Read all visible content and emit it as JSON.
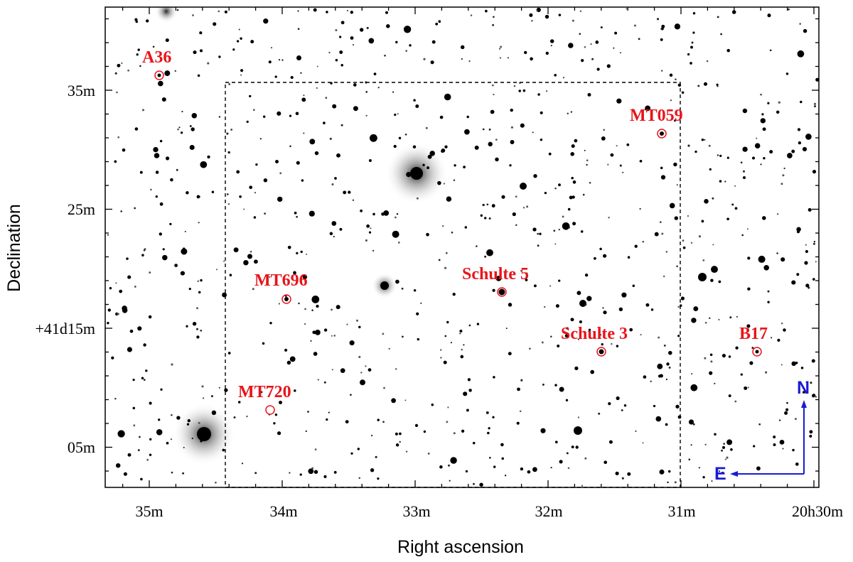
{
  "axes": {
    "xlabel": "Right ascension",
    "ylabel": "Declination",
    "x_ticks": [
      "35m",
      "34m",
      "33m",
      "32m",
      "31m",
      "20h30m"
    ],
    "y_ticks": [
      "35m",
      "25m",
      "+41d15m",
      "05m"
    ]
  },
  "sources": [
    {
      "label": "A36"
    },
    {
      "label": "MT059"
    },
    {
      "label": "MT696"
    },
    {
      "label": "Schulte 5"
    },
    {
      "label": "Schulte 3"
    },
    {
      "label": "B17"
    },
    {
      "label": "MT720"
    }
  ],
  "compass": {
    "north": "N",
    "east": "E",
    "color": "#1a1ad6"
  },
  "colors": {
    "labels": "#e8141a",
    "frame": "#000000",
    "field_box": "#000000"
  }
}
